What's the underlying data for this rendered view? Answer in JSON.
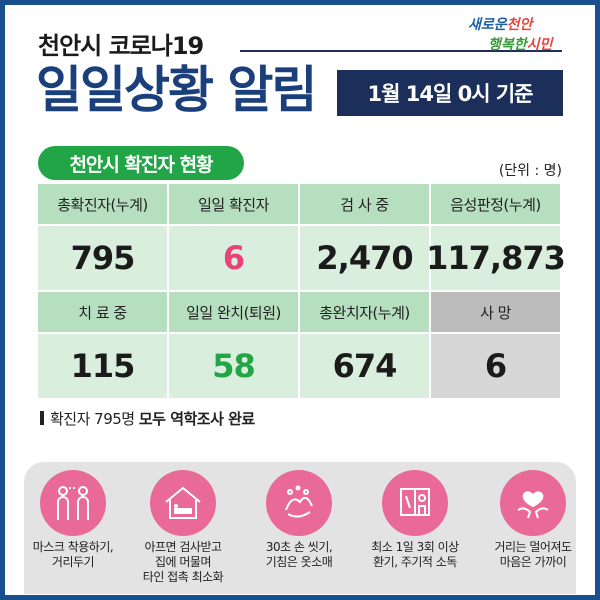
{
  "header": {
    "subtitle": "천안시 코로나19",
    "title": "일일상황 알림",
    "date": "1월 14일 0시 기준",
    "brand_line1a": "새로운",
    "brand_line1b": "천안",
    "brand_line2a": "행복한",
    "brand_line2b": "시민"
  },
  "section": {
    "title": "천안시 확진자 현황",
    "unit": "(단위 : 명)"
  },
  "stats": {
    "row1": [
      {
        "label": "총확진자(누계)",
        "value": "795"
      },
      {
        "label": "일일 확진자",
        "value": "6"
      },
      {
        "label": "검 사 중",
        "value": "2,470"
      },
      {
        "label": "음성판정(누계)",
        "value": "117,873"
      }
    ],
    "row2": [
      {
        "label": "치 료 중",
        "value": "115"
      },
      {
        "label": "일일 완치(퇴원)",
        "value": "58"
      },
      {
        "label": "총완치자(누계)",
        "value": "674"
      },
      {
        "label": "사  망",
        "value": "6"
      }
    ]
  },
  "note": {
    "prefix": "확진자 795명 ",
    "bold": "모두 역학조사 완료"
  },
  "tips": [
    {
      "icon": "mask-people-icon",
      "line1": "마스크 착용하기,",
      "line2": "거리두기"
    },
    {
      "icon": "house-rest-icon",
      "line1": "아프면 검사받고",
      "line2": "집에 머물며",
      "line3": "타인 접촉 최소화"
    },
    {
      "icon": "handwash-icon",
      "line1": "30초 손 씻기,",
      "line2": "기침은 옷소매"
    },
    {
      "icon": "ventilation-window-icon",
      "line1": "최소 1일 3회 이상",
      "line2": "환기, 주기적 소독"
    },
    {
      "icon": "heart-hands-icon",
      "line1": "거리는 멀어져도",
      "line2": "마음은 가까이"
    }
  ],
  "colors": {
    "navy": "#1b2f5a",
    "title_blue": "#1b3f7a",
    "green": "#22a547",
    "pink": "#e8427a",
    "tip_pink": "#e96a96"
  }
}
